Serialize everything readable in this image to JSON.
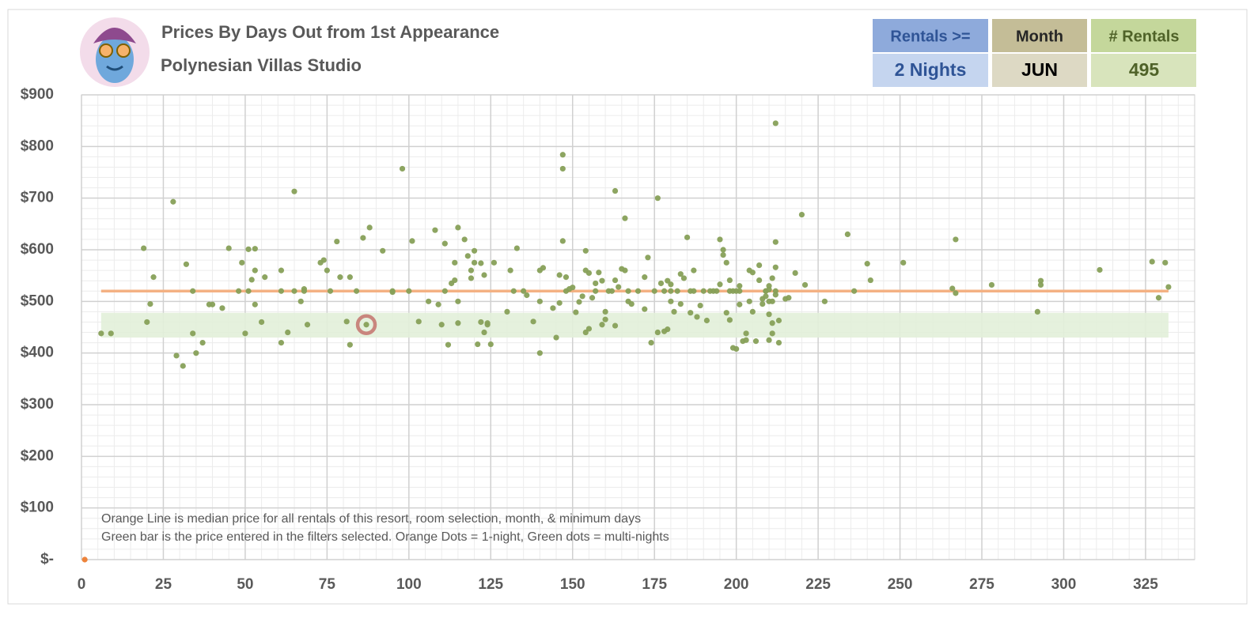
{
  "header": {
    "title": "Prices By Days Out from 1st Appearance",
    "subtitle": "Polynesian Villas Studio"
  },
  "filters": [
    {
      "label": "Rentals >=",
      "value": "2 Nights"
    },
    {
      "label": "Month",
      "value": "JUN"
    },
    {
      "label": "# Rentals",
      "value": "495"
    }
  ],
  "chart_data": {
    "type": "scatter",
    "xlim": [
      0,
      340
    ],
    "ylim": [
      0,
      900
    ],
    "xticks": [
      0,
      25,
      50,
      75,
      100,
      125,
      150,
      175,
      200,
      225,
      250,
      275,
      300,
      325
    ],
    "yticks": [
      {
        "value": 0,
        "label": "$-"
      },
      {
        "value": 100,
        "label": "$100"
      },
      {
        "value": 200,
        "label": "$200"
      },
      {
        "value": 300,
        "label": "$300"
      },
      {
        "value": 400,
        "label": "$400"
      },
      {
        "value": 500,
        "label": "$500"
      },
      {
        "value": 600,
        "label": "$600"
      },
      {
        "value": 700,
        "label": "$700"
      },
      {
        "value": 800,
        "label": "$800"
      },
      {
        "value": 900,
        "label": "$900"
      }
    ],
    "grid": true,
    "target_band": {
      "x": [
        6,
        332
      ],
      "y": [
        430,
        478
      ],
      "color": "#e2efd9"
    },
    "median_line": {
      "x": [
        6,
        332
      ],
      "value": 520,
      "color": "#f4b183"
    },
    "highlight": {
      "x": 87,
      "y": 455,
      "color": "#c9867e"
    },
    "series": [
      {
        "color": "#87a058",
        "x": [
          6,
          9,
          19,
          20,
          21,
          22,
          28,
          29,
          31,
          32,
          34,
          34,
          35,
          37,
          39,
          40,
          43,
          45,
          48,
          49,
          50,
          51,
          51,
          52,
          53,
          53,
          53,
          55,
          56,
          61,
          61,
          61,
          63,
          65,
          65,
          67,
          68,
          68,
          69,
          73,
          74,
          75,
          76,
          78,
          79,
          81,
          82,
          82,
          84,
          86,
          88,
          87,
          92,
          95,
          95,
          98,
          100,
          101,
          103,
          106,
          108,
          109,
          110,
          111,
          111,
          112,
          113,
          114,
          114,
          115,
          115,
          115,
          117,
          118,
          119,
          119,
          120,
          120,
          121,
          122,
          122,
          123,
          123,
          124,
          124,
          125,
          126,
          130,
          131,
          132,
          133,
          135,
          136,
          138,
          140,
          140,
          140,
          141,
          144,
          145,
          146,
          146,
          147,
          147,
          147,
          148,
          148,
          149,
          150,
          151,
          152,
          153,
          154,
          154,
          154,
          155,
          155,
          156,
          157,
          157,
          158,
          159,
          159,
          160,
          160,
          161,
          162,
          163,
          163,
          163,
          164,
          165,
          166,
          166,
          167,
          167,
          168,
          170,
          172,
          172,
          173,
          174,
          175,
          176,
          176,
          177,
          178,
          178,
          179,
          179,
          180,
          180,
          180,
          181,
          182,
          183,
          183,
          184,
          185,
          186,
          186,
          187,
          187,
          188,
          189,
          190,
          191,
          192,
          193,
          194,
          195,
          195,
          196,
          196,
          197,
          197,
          198,
          198,
          198,
          199,
          199,
          200,
          200,
          201,
          201,
          201,
          202,
          203,
          203,
          204,
          204,
          205,
          205,
          206,
          207,
          207,
          208,
          208,
          209,
          209,
          209,
          210,
          210,
          210,
          210,
          210,
          211,
          211,
          211,
          211,
          212,
          212,
          212,
          212,
          212,
          213,
          213,
          215,
          216,
          218,
          220,
          221,
          227,
          234,
          236,
          240,
          241,
          251,
          266,
          267,
          267,
          278,
          292,
          293,
          293,
          311,
          327,
          329,
          331,
          332
        ],
        "y": [
          438,
          438,
          603,
          460,
          495,
          547,
          693,
          395,
          375,
          572,
          438,
          520,
          400,
          420,
          494,
          494,
          487,
          603,
          520,
          575,
          438,
          601,
          520,
          542,
          602,
          560,
          494,
          460,
          547,
          520,
          420,
          560,
          440,
          713,
          520,
          500,
          520,
          524,
          455,
          575,
          580,
          560,
          520,
          616,
          547,
          461,
          416,
          547,
          520,
          623,
          643,
          455,
          598,
          520,
          518,
          757,
          520,
          617,
          461,
          500,
          638,
          494,
          455,
          520,
          612,
          416,
          535,
          541,
          575,
          643,
          500,
          458,
          620,
          588,
          560,
          545,
          598,
          575,
          417,
          574,
          460,
          440,
          551,
          455,
          458,
          417,
          575,
          480,
          560,
          520,
          603,
          520,
          512,
          461,
          500,
          400,
          560,
          565,
          487,
          430,
          497,
          551,
          784,
          757,
          617,
          547,
          520,
          524,
          527,
          479,
          499,
          510,
          598,
          560,
          440,
          447,
          555,
          507,
          535,
          520,
          556,
          455,
          540,
          480,
          465,
          520,
          520,
          541,
          453,
          714,
          528,
          563,
          661,
          560,
          520,
          500,
          495,
          520,
          485,
          547,
          585,
          420,
          520,
          700,
          440,
          535,
          520,
          442,
          540,
          446,
          520,
          533,
          500,
          480,
          520,
          553,
          495,
          545,
          624,
          520,
          478,
          520,
          560,
          470,
          492,
          520,
          463,
          520,
          520,
          520,
          620,
          533,
          600,
          590,
          575,
          478,
          541,
          520,
          464,
          410,
          520,
          408,
          520,
          530,
          494,
          520,
          423,
          438,
          425,
          500,
          560,
          480,
          556,
          423,
          541,
          570,
          505,
          495,
          520,
          520,
          510,
          530,
          523,
          500,
          425,
          475,
          545,
          458,
          438,
          500,
          845,
          566,
          615,
          520,
          513,
          420,
          463,
          505,
          507,
          555,
          668,
          532,
          500,
          630,
          520,
          573,
          541,
          575,
          525,
          620,
          516,
          532,
          480,
          540,
          532,
          561,
          577,
          507,
          575,
          528
        ]
      },
      {
        "color": "#ed7d31",
        "x": [
          1
        ],
        "y": [
          0
        ]
      }
    ],
    "notes": [
      "Orange Line is median price for all rentals of this resort, room selection, month, & minimum days",
      "Green bar is the price entered in the filters selected. Orange Dots = 1-night, Green dots = multi-nights"
    ]
  }
}
